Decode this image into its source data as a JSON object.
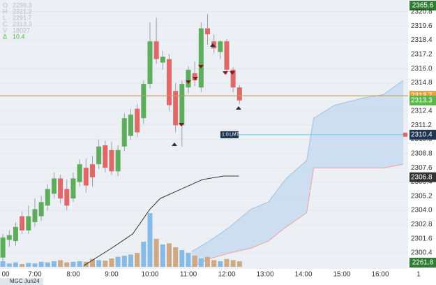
{
  "chart_data": {
    "type": "candlestick",
    "instrument": "MGC Jun24",
    "info": [
      {
        "key": "O",
        "text": "2299.3"
      },
      {
        "key": "H",
        "text": "2321.2"
      },
      {
        "key": "L",
        "text": "2291.7"
      },
      {
        "key": "C",
        "text": "2313.3"
      },
      {
        "key": "V",
        "text": "18027"
      },
      {
        "key": "Δ",
        "text": "10.4"
      }
    ],
    "x": [
      370,
      380,
      390,
      400,
      410,
      420,
      430,
      440,
      450,
      460,
      470,
      480,
      490,
      500,
      510,
      520,
      530,
      540,
      550,
      560,
      570,
      580,
      590,
      600,
      610,
      620,
      630,
      640,
      650,
      660,
      670,
      680,
      690,
      700,
      710,
      720,
      730,
      740
    ],
    "open": [
      2300.0,
      2301.5,
      2301.4,
      2303.5,
      2302.3,
      2303.0,
      2303.5,
      2304.4,
      2305.4,
      2306.7,
      2305.8,
      2305.0,
      2306.4,
      2307.6,
      2307.9,
      2307.9,
      2309.5,
      2309.1,
      2307.3,
      2309.4,
      2310.3,
      2312.6,
      2311.8,
      2314.7,
      2318.3,
      2316.5,
      2316.8,
      2314.1,
      2311.2,
      2314.4,
      2315.6,
      2314.4,
      2319.4,
      2318.3,
      2317.4,
      2318.3,
      2315.9,
      2314.4
    ],
    "high": [
      2302.0,
      2302.3,
      2303.0,
      2303.9,
      2304.4,
      2305.0,
      2305.2,
      2306.2,
      2307.2,
      2307.0,
      2306.6,
      2307.2,
      2308.3,
      2308.4,
      2308.6,
      2310.0,
      2309.9,
      2309.8,
      2309.5,
      2312.2,
      2312.6,
      2313.0,
      2315.0,
      2319.9,
      2320.3,
      2317.5,
      2317.2,
      2314.8,
      2315.0,
      2316.2,
      2316.6,
      2319.9,
      2320.6,
      2318.9,
      2318.4,
      2318.5,
      2316.1,
      2314.6
    ],
    "low": [
      2299.6,
      2300.9,
      2301.0,
      2302.0,
      2302.0,
      2302.6,
      2303.1,
      2304.0,
      2305.0,
      2304.6,
      2304.0,
      2304.7,
      2306.0,
      2305.5,
      2306.0,
      2307.5,
      2307.2,
      2307.0,
      2306.9,
      2309.0,
      2310.0,
      2310.2,
      2311.3,
      2314.3,
      2316.4,
      2315.9,
      2312.4,
      2310.6,
      2309.4,
      2313.9,
      2314.5,
      2314.0,
      2318.0,
      2317.3,
      2316.8,
      2315.5,
      2314.0,
      2313.0
    ],
    "close": [
      2301.7,
      2301.9,
      2302.6,
      2302.3,
      2303.5,
      2304.1,
      2304.7,
      2305.8,
      2306.7,
      2305.0,
      2304.4,
      2306.7,
      2307.9,
      2306.1,
      2306.8,
      2309.4,
      2307.6,
      2307.3,
      2309.1,
      2311.8,
      2312.1,
      2310.6,
      2314.7,
      2318.3,
      2316.8,
      2317.0,
      2312.9,
      2311.2,
      2314.7,
      2315.9,
      2315.0,
      2319.4,
      2318.9,
      2317.7,
      2318.3,
      2315.9,
      2314.4,
      2313.3
    ],
    "up_color": "#5cae5c",
    "down_color": "#e06868",
    "volume": {
      "values": [
        10,
        6,
        8,
        5,
        7,
        6,
        9,
        8,
        10,
        12,
        8,
        9,
        10,
        9,
        14,
        12,
        11,
        15,
        18,
        20,
        22,
        25,
        45,
        96,
        50,
        40,
        42,
        35,
        30,
        25,
        20,
        15,
        18,
        12,
        10,
        14,
        12,
        10
      ],
      "ylim": [
        0,
        100
      ],
      "up_color": "#86bbe8",
      "down_color": "#cfa884"
    },
    "moving_average": {
      "x": [
        496,
        540,
        573,
        600,
        616,
        649,
        682,
        715,
        739
      ],
      "values": [
        2299.3,
        2300.8,
        2302.0,
        2304.1,
        2305.0,
        2305.8,
        2306.6,
        2306.9,
        2306.9
      ],
      "color": "#222222"
    },
    "cloud": {
      "x": [
        665,
        693,
        725,
        758,
        785,
        813,
        845,
        856,
        889,
        933,
        965,
        996
      ],
      "upper": [
        2300.5,
        2301.4,
        2302.6,
        2304.1,
        2304.7,
        2306.7,
        2308.2,
        2311.8,
        2312.9,
        2313.5,
        2313.8,
        2315.0
      ],
      "lower": [
        2299.2,
        2299.9,
        2300.4,
        2300.8,
        2301.4,
        2302.6,
        2303.8,
        2307.6,
        2307.6,
        2307.6,
        2307.6,
        2307.9
      ],
      "fill": "#c5daef",
      "upper_color": "#9cc2e6",
      "lower_color": "#f0a0a0"
    },
    "levels": [
      {
        "value": 2313.7,
        "color": "#c8a050",
        "label_bg": "#e8a040"
      },
      {
        "value": 2310.4,
        "color": "#5fd3e6",
        "label_bg": "#1e3550",
        "order_label": "1:0",
        "order_type": "LMT"
      }
    ],
    "badges": [
      {
        "value": 2313.3,
        "bg": "#58b848"
      },
      {
        "value": 2306.8,
        "bg": "#333333"
      }
    ],
    "off_scale_badges": [
      {
        "text": "2365.6",
        "bg": "#2e7d32"
      },
      {
        "text": "2261.8",
        "bg": "#2e7d32"
      }
    ],
    "xlim": [
      365.5,
      1003.6
    ],
    "xticks": [
      {
        "value": 360,
        "label": "00"
      },
      {
        "value": 420,
        "label": "7:00"
      },
      {
        "value": 480,
        "label": "8:00"
      },
      {
        "value": 540,
        "label": "9:00"
      },
      {
        "value": 600,
        "label": "10:00"
      },
      {
        "value": 660,
        "label": "11:00"
      },
      {
        "value": 720,
        "label": "12:00"
      },
      {
        "value": 780,
        "label": "13:00"
      },
      {
        "value": 840,
        "label": "14:00"
      },
      {
        "value": 900,
        "label": "15:00"
      },
      {
        "value": 960,
        "label": "16:00"
      },
      {
        "value": 1020,
        "label": "1"
      }
    ],
    "ylim": [
      2299.04,
      2321.8
    ],
    "yticks": [
      2320.8,
      2319.6,
      2318.4,
      2317.2,
      {
        "value": 2316,
        "label": "2316.0"
      },
      2314.8,
      2313.6,
      2312.4,
      2311.2,
      {
        "value": 2310,
        "label": "2310.0"
      },
      2308.8,
      2307.6,
      2306.4,
      2305.2,
      {
        "value": 2304,
        "label": "2304.0"
      },
      2302.8,
      2301.6,
      2300.4
    ],
    "grid": true
  }
}
